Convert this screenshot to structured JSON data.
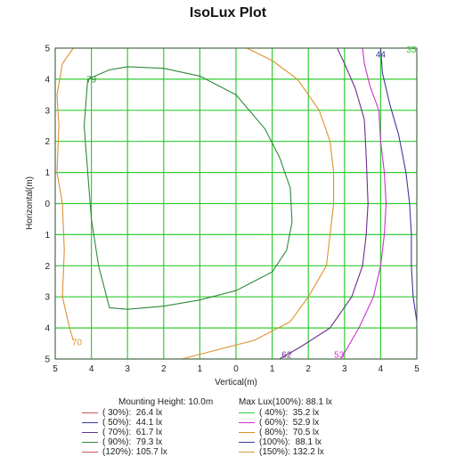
{
  "chart_data": {
    "type": "contour",
    "title": "IsoLux Plot",
    "xlabel": "Vertical(m)",
    "ylabel": "Horizontal(m)",
    "x_ticks": [
      "5",
      "4",
      "3",
      "2",
      "1",
      "0",
      "1",
      "2",
      "3",
      "4",
      "5"
    ],
    "y_ticks": [
      "5",
      "4",
      "3",
      "2",
      "1",
      "0",
      "1",
      "2",
      "3",
      "4",
      "5"
    ],
    "xlim": [
      -5,
      5
    ],
    "ylim": [
      -5,
      5
    ],
    "grid": true,
    "grid_color": "#33cc33",
    "contours": [
      {
        "value": 44.1,
        "label": "44",
        "color": "#3b3b9e",
        "points": [
          [
            4.0,
            5.0
          ],
          [
            4.05,
            4.2
          ],
          [
            4.25,
            3.2
          ],
          [
            4.5,
            2.2
          ],
          [
            4.7,
            1.0
          ],
          [
            4.8,
            0.0
          ],
          [
            4.85,
            -1.0
          ],
          [
            4.85,
            -2.0
          ],
          [
            4.9,
            -3.0
          ],
          [
            5.0,
            -3.8
          ]
        ]
      },
      {
        "value": 52.9,
        "label": "53",
        "color": "#cc33cc",
        "points": [
          [
            3.5,
            5.0
          ],
          [
            3.55,
            4.5
          ],
          [
            3.7,
            3.8
          ],
          [
            3.95,
            3.0
          ],
          [
            4.0,
            2.0
          ],
          [
            4.1,
            1.0
          ],
          [
            4.15,
            0.0
          ],
          [
            4.1,
            -1.0
          ],
          [
            4.0,
            -2.0
          ],
          [
            3.8,
            -3.0
          ],
          [
            3.4,
            -4.0
          ],
          [
            2.9,
            -5.0
          ]
        ]
      },
      {
        "value": 61.7,
        "label": "62",
        "color": "#6a2f8f",
        "points": [
          [
            2.8,
            5.0
          ],
          [
            3.0,
            4.5
          ],
          [
            3.3,
            3.7
          ],
          [
            3.55,
            2.7
          ],
          [
            3.6,
            1.5
          ],
          [
            3.65,
            0.0
          ],
          [
            3.6,
            -1.0
          ],
          [
            3.5,
            -2.0
          ],
          [
            3.2,
            -3.0
          ],
          [
            2.6,
            -4.0
          ],
          [
            1.8,
            -4.6
          ],
          [
            1.2,
            -5.0
          ]
        ]
      },
      {
        "value": 70.5,
        "label": "70",
        "color": "#e09030",
        "points": [
          [
            0.3,
            5.0
          ],
          [
            1.0,
            4.6
          ],
          [
            1.7,
            4.0
          ],
          [
            2.3,
            3.0
          ],
          [
            2.6,
            2.0
          ],
          [
            2.7,
            1.0
          ],
          [
            2.7,
            0.0
          ],
          [
            2.6,
            -1.0
          ],
          [
            2.5,
            -2.0
          ],
          [
            2.0,
            -3.0
          ],
          [
            1.5,
            -3.8
          ],
          [
            0.5,
            -4.4
          ],
          [
            -0.5,
            -4.7
          ],
          [
            -1.5,
            -5.0
          ]
        ]
      },
      {
        "value": 70.5,
        "label": "70",
        "color": "#e09030",
        "points": [
          [
            -4.5,
            5.0
          ],
          [
            -4.8,
            4.5
          ],
          [
            -4.95,
            3.5
          ],
          [
            -4.9,
            2.5
          ],
          [
            -4.95,
            1.0
          ],
          [
            -4.8,
            0.0
          ],
          [
            -4.75,
            -1.5
          ],
          [
            -4.8,
            -3.0
          ],
          [
            -4.6,
            -4.0
          ],
          [
            -4.5,
            -4.4
          ]
        ]
      },
      {
        "value": 79.3,
        "label": "79",
        "color": "#2f8a3a",
        "points": [
          [
            -4.1,
            4.0
          ],
          [
            -3.5,
            4.3
          ],
          [
            -3.0,
            4.4
          ],
          [
            -2.0,
            4.35
          ],
          [
            -1.0,
            4.1
          ],
          [
            0.0,
            3.5
          ],
          [
            0.8,
            2.4
          ],
          [
            1.2,
            1.5
          ],
          [
            1.5,
            0.5
          ],
          [
            1.55,
            -0.6
          ],
          [
            1.4,
            -1.5
          ],
          [
            1.0,
            -2.2
          ],
          [
            0.0,
            -2.8
          ],
          [
            -1.0,
            -3.1
          ],
          [
            -2.0,
            -3.3
          ],
          [
            -3.0,
            -3.4
          ],
          [
            -3.5,
            -3.35
          ],
          [
            -3.8,
            -2.0
          ],
          [
            -4.0,
            -0.5
          ],
          [
            -4.1,
            1.0
          ],
          [
            -4.2,
            2.5
          ],
          [
            -4.1,
            4.0
          ]
        ]
      }
    ],
    "contour_labels": [
      {
        "text": "79",
        "x": -4.0,
        "y": 4.0,
        "color": "#2f8a3a"
      },
      {
        "text": "44",
        "x": 4.0,
        "y": 4.8,
        "color": "#3b3b9e"
      },
      {
        "text": "35",
        "x": 4.85,
        "y": 4.95,
        "color": "#33cc33"
      },
      {
        "text": "70",
        "x": -4.4,
        "y": -4.45,
        "color": "#e09030"
      },
      {
        "text": "62",
        "x": 1.4,
        "y": -4.85,
        "color": "#6a2f8f"
      },
      {
        "text": "53",
        "x": 2.85,
        "y": -4.85,
        "color": "#cc33cc"
      }
    ],
    "info": {
      "mounting_height": "Mounting Height: 10.0m",
      "max_lux": "Max Lux(100%): 88.1 lx"
    },
    "legend": [
      {
        "text": "( 30%):  26.4 lx",
        "color": "#cc5555"
      },
      {
        "text": "( 40%):  35.2 lx",
        "color": "#33cc33"
      },
      {
        "text": "( 50%):  44.1 lx",
        "color": "#3b3b9e"
      },
      {
        "text": "( 60%):  52.9 lx",
        "color": "#cc33cc"
      },
      {
        "text": "( 70%):  61.7 lx",
        "color": "#6a2f8f"
      },
      {
        "text": "( 80%):  70.5 lx",
        "color": "#e09030"
      },
      {
        "text": "( 90%):  79.3 lx",
        "color": "#2f8a3a"
      },
      {
        "text": "(100%):  88.1 lx",
        "color": "#3b3b9e"
      },
      {
        "text": "(120%): 105.7 lx",
        "color": "#cc5555"
      },
      {
        "text": "(150%): 132.2 lx",
        "color": "#c8a040"
      }
    ]
  }
}
